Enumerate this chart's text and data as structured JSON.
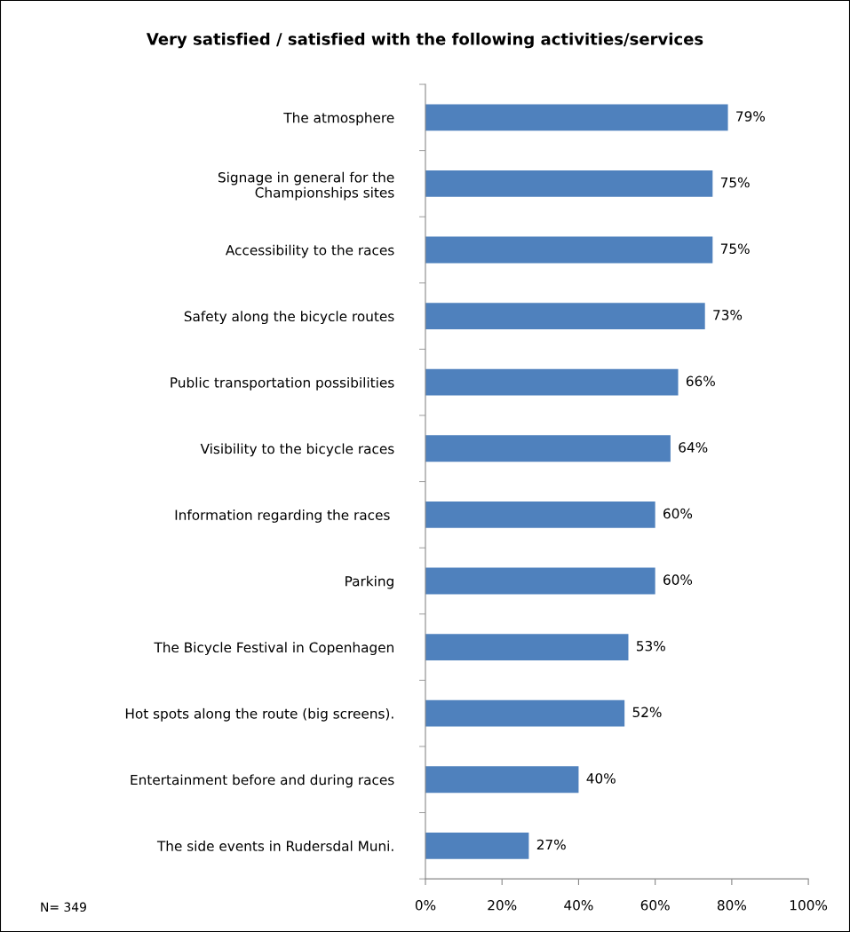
{
  "chart_data": {
    "type": "bar",
    "orientation": "horizontal",
    "title": "Very satisfied / satisfied with the following activities/services",
    "categories": [
      "The atmosphere",
      "Signage in general for the\nChampionships sites",
      "Accessibility to the races",
      "Safety along the bicycle routes",
      "Public transportation possibilities",
      "Visibility to the bicycle races",
      "Information regarding the races ",
      "Parking",
      "The Bicycle Festival in Copenhagen",
      "Hot spots along the route (big screens).",
      "Entertainment before and during races",
      "The side events in Rudersdal Muni."
    ],
    "values": [
      79,
      75,
      75,
      73,
      66,
      64,
      60,
      60,
      53,
      52,
      40,
      27
    ],
    "value_labels": [
      "79%",
      "75%",
      "75%",
      "73%",
      "66%",
      "64%",
      "60%",
      "60%",
      "53%",
      "52%",
      "40%",
      "27%"
    ],
    "color": "#4f81bd",
    "xlim": [
      0,
      100
    ],
    "xticks": [
      {
        "value": 0,
        "label": "0%"
      },
      {
        "value": 20,
        "label": "20%"
      },
      {
        "value": 40,
        "label": "40%"
      },
      {
        "value": 60,
        "label": "60%"
      },
      {
        "value": 80,
        "label": "80%"
      },
      {
        "value": 100,
        "label": "100%"
      }
    ],
    "grid": false,
    "legend": false,
    "annotations": [
      "N= 349"
    ]
  }
}
